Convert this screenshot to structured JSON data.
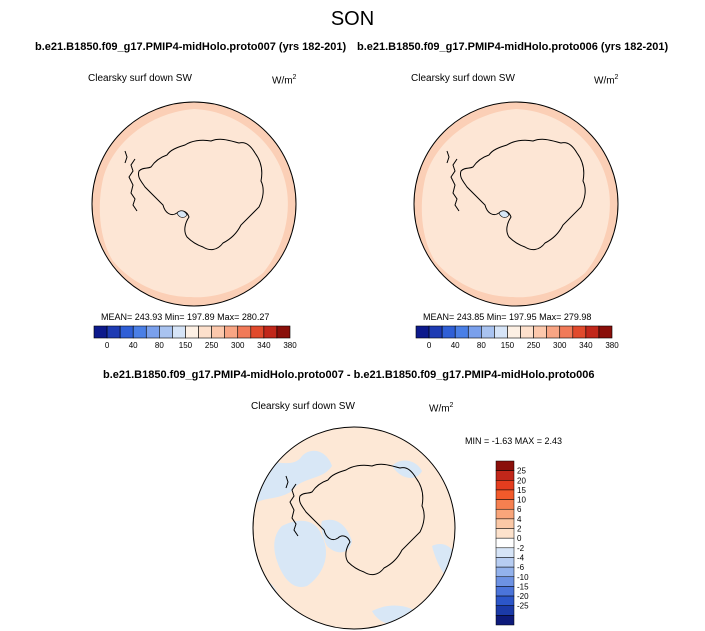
{
  "season_title": "SON",
  "panels": [
    {
      "case_title": "b.e21.B1850.f09_g17.PMIP4-midHolo.proto007 (yrs 182-201)",
      "field_label": "Clearsky surf down SW",
      "units_base": "W/m",
      "units_exp": "2",
      "stats": "MEAN= 243.93  Min= 197.89  Max= 280.27"
    },
    {
      "case_title": "b.e21.B1850.f09_g17.PMIP4-midHolo.proto006 (yrs 182-201)",
      "field_label": "Clearsky surf down SW",
      "units_base": "W/m",
      "units_exp": "2",
      "stats": "MEAN= 243.85  Min= 197.95  Max= 279.98"
    }
  ],
  "abs_colorbar": {
    "colors": [
      "#0d1a8c",
      "#1e3bb3",
      "#2f5fd6",
      "#4a7fe6",
      "#7aa0ec",
      "#a9c3f0",
      "#d6e4f7",
      "#fdf0e4",
      "#fde0cc",
      "#fcc8ac",
      "#f8a584",
      "#f17a58",
      "#e14a2c",
      "#c1271a",
      "#8a0f0a"
    ],
    "labels": [
      "0",
      "40",
      "80",
      "150",
      "250",
      "300",
      "340",
      "380"
    ]
  },
  "diff": {
    "title": "b.e21.B1850.f09_g17.PMIP4-midHolo.proto007 - b.e21.B1850.f09_g17.PMIP4-midHolo.proto006",
    "field_label": "Clearsky surf down SW",
    "units_base": "W/m",
    "units_exp": "2",
    "stats": "MIN =  -1.63 MAX =   2.43",
    "colorbar_colors": [
      "#8a0f0a",
      "#c1271a",
      "#e43d1f",
      "#f25a2b",
      "#f68050",
      "#f9a57a",
      "#fbc8a6",
      "#fde2cc",
      "#ffffff",
      "#d6e4f7",
      "#b7cdf2",
      "#93b2ec",
      "#6d92e3",
      "#4b74da",
      "#2c56c9",
      "#1b3aa8",
      "#0d1a7a"
    ],
    "colorbar_labels": [
      "25",
      "20",
      "15",
      "10",
      "6",
      "4",
      "2",
      "0",
      "-2",
      "-4",
      "-6",
      "-10",
      "-15",
      "-20",
      "-25"
    ]
  },
  "map_colors": {
    "ocean_outer": "#fbcfb6",
    "inner": "#fde6d5",
    "light_blue": "#d8e7f6",
    "diff_bg": "#fde8d6"
  }
}
